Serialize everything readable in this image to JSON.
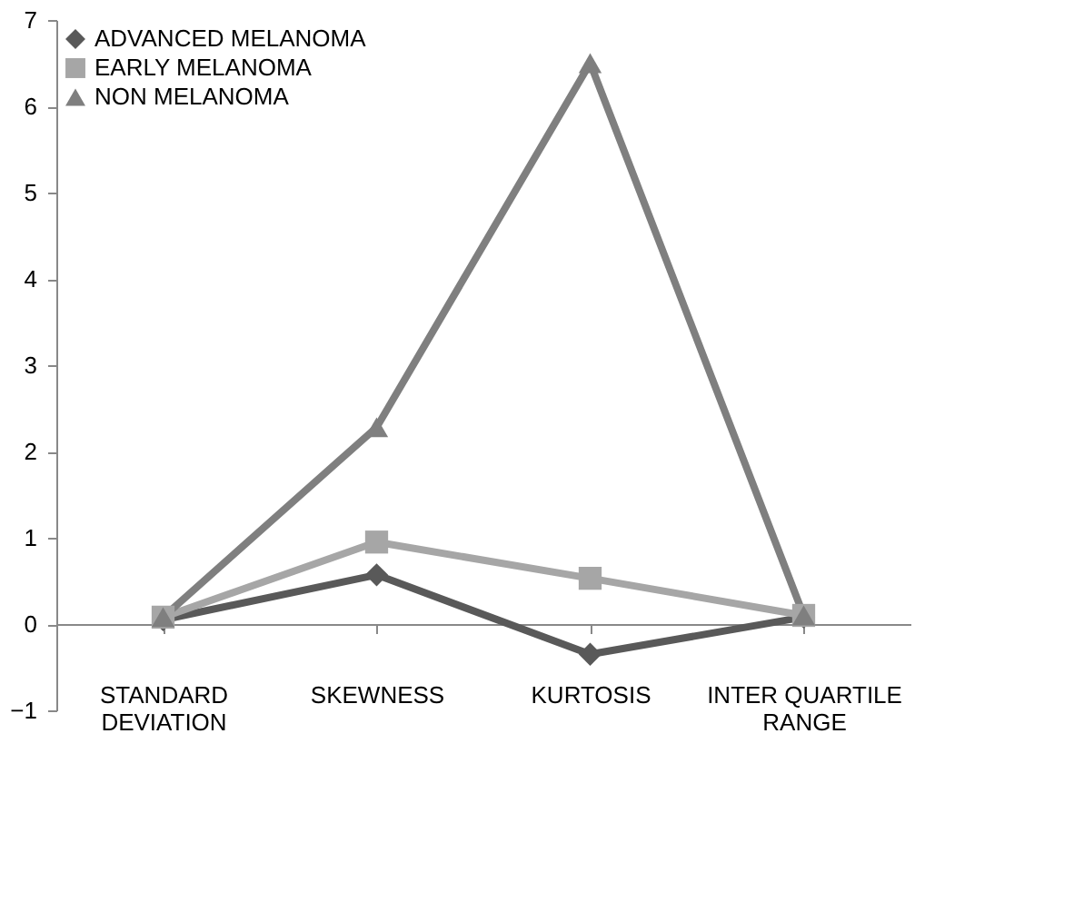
{
  "chart_data": {
    "type": "line",
    "categories": [
      "STANDARD DEVIATION",
      "SKEWNESS",
      "KURTOSIS",
      "INTER QUARTILE RANGE"
    ],
    "series": [
      {
        "name": "ADVANCED MELANOMA",
        "color": "#595959",
        "marker": "diamond",
        "values": [
          0.05,
          0.57,
          -0.35,
          0.08
        ]
      },
      {
        "name": "EARLY MELANOMA",
        "color": "#a6a6a6",
        "marker": "square",
        "values": [
          0.08,
          0.95,
          0.53,
          0.1
        ]
      },
      {
        "name": "NON MELANOMA",
        "color": "#7f7f7f",
        "marker": "triangle",
        "values": [
          0.08,
          2.28,
          6.5,
          0.1
        ]
      }
    ],
    "ylim": [
      -1,
      7
    ],
    "yticks": [
      -1,
      0,
      1,
      2,
      3,
      4,
      5,
      6,
      7
    ],
    "grid": false,
    "legend": "top left"
  }
}
